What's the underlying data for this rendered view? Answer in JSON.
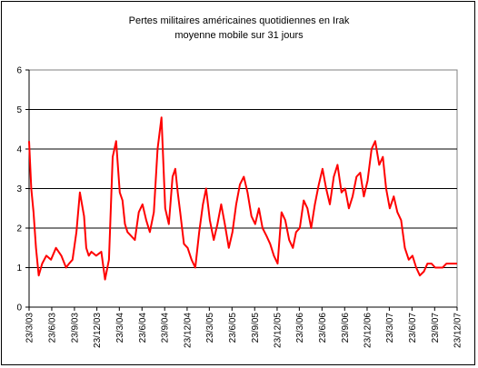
{
  "chart_data": {
    "type": "line",
    "title": "Pertes militaires américaines quotidiennes en Irak",
    "subtitle": "moyenne mobile sur 31 jours",
    "xlabel": "",
    "ylabel": "",
    "ylim": [
      0,
      6
    ],
    "yticks": [
      "0",
      "1",
      "2",
      "3",
      "4",
      "5",
      "6"
    ],
    "xlim": [
      "2003-03-23",
      "2007-12-23"
    ],
    "xticks": [
      "23/3/03",
      "23/6/03",
      "23/9/03",
      "23/12/03",
      "23/3/04",
      "23/6/04",
      "23/9/04",
      "23/12/04",
      "23/3/05",
      "23/6/05",
      "23/9/05",
      "23/12/05",
      "23/3/06",
      "23/6/06",
      "23/9/06",
      "23/12/06",
      "23/3/07",
      "23/6/07",
      "23/9/07",
      "23/12/07"
    ],
    "grid": true,
    "legend": "none",
    "line_color": "#ff0000",
    "x": [
      "2003-03-23",
      "2003-04-01",
      "2003-04-10",
      "2003-04-20",
      "2003-05-01",
      "2003-05-15",
      "2003-06-01",
      "2003-06-20",
      "2003-07-10",
      "2003-08-01",
      "2003-08-20",
      "2003-09-01",
      "2003-09-15",
      "2003-10-01",
      "2003-10-15",
      "2003-11-01",
      "2003-11-10",
      "2003-11-20",
      "2003-12-01",
      "2003-12-20",
      "2004-01-10",
      "2004-01-25",
      "2004-02-10",
      "2004-02-25",
      "2004-03-10",
      "2004-03-25",
      "2004-04-05",
      "2004-04-15",
      "2004-04-25",
      "2004-05-10",
      "2004-05-25",
      "2004-06-10",
      "2004-06-25",
      "2004-07-10",
      "2004-07-25",
      "2004-08-10",
      "2004-08-25",
      "2004-09-10",
      "2004-09-25",
      "2004-10-10",
      "2004-10-25",
      "2004-11-05",
      "2004-11-15",
      "2004-11-25",
      "2004-12-10",
      "2004-12-25",
      "2005-01-10",
      "2005-01-25",
      "2005-02-10",
      "2005-02-25",
      "2005-03-10",
      "2005-03-25",
      "2005-04-10",
      "2005-04-25",
      "2005-05-10",
      "2005-05-25",
      "2005-06-10",
      "2005-06-25",
      "2005-07-10",
      "2005-07-25",
      "2005-08-10",
      "2005-08-25",
      "2005-09-10",
      "2005-09-25",
      "2005-10-10",
      "2005-10-25",
      "2005-11-10",
      "2005-11-25",
      "2005-12-10",
      "2005-12-25",
      "2006-01-10",
      "2006-01-25",
      "2006-02-10",
      "2006-02-25",
      "2006-03-10",
      "2006-03-25",
      "2006-04-10",
      "2006-04-25",
      "2006-05-10",
      "2006-05-25",
      "2006-06-10",
      "2006-06-25",
      "2006-07-10",
      "2006-07-25",
      "2006-08-10",
      "2006-08-25",
      "2006-09-10",
      "2006-09-25",
      "2006-10-10",
      "2006-10-25",
      "2006-11-10",
      "2006-11-25",
      "2006-12-10",
      "2006-12-25",
      "2007-01-10",
      "2007-01-25",
      "2007-02-10",
      "2007-02-25",
      "2007-03-10",
      "2007-03-25",
      "2007-04-10",
      "2007-04-25",
      "2007-05-10",
      "2007-05-25",
      "2007-06-10",
      "2007-06-25",
      "2007-07-10",
      "2007-07-25",
      "2007-08-10",
      "2007-08-25",
      "2007-09-10",
      "2007-09-25",
      "2007-10-10",
      "2007-10-25",
      "2007-11-10",
      "2007-11-25",
      "2007-12-10",
      "2007-12-23"
    ],
    "series": [
      {
        "values": [
          4.2,
          3.0,
          2.4,
          1.5,
          0.8,
          1.1,
          1.3,
          1.2,
          1.5,
          1.3,
          1.0,
          1.1,
          1.2,
          1.9,
          2.9,
          2.3,
          1.5,
          1.3,
          1.4,
          1.3,
          1.4,
          0.7,
          1.2,
          3.8,
          4.2,
          2.9,
          2.7,
          2.1,
          1.9,
          1.8,
          1.7,
          2.4,
          2.6,
          2.2,
          1.9,
          2.4,
          4.0,
          4.8,
          2.5,
          2.1,
          3.3,
          3.5,
          2.9,
          2.4,
          1.6,
          1.5,
          1.2,
          1.0,
          1.9,
          2.6,
          3.0,
          2.2,
          1.7,
          2.1,
          2.6,
          2.1,
          1.5,
          1.9,
          2.6,
          3.1,
          3.3,
          2.9,
          2.3,
          2.1,
          2.5,
          2.0,
          1.8,
          1.6,
          1.3,
          1.1,
          2.4,
          2.2,
          1.7,
          1.5,
          1.9,
          2.0,
          2.7,
          2.5,
          2.0,
          2.6,
          3.1,
          3.5,
          3.0,
          2.6,
          3.3,
          3.6,
          2.9,
          3.0,
          2.5,
          2.8,
          3.3,
          3.4,
          2.8,
          3.2,
          4.0,
          4.2,
          3.6,
          3.8,
          3.0,
          2.5,
          2.8,
          2.4,
          2.2,
          1.5,
          1.2,
          1.3,
          1.0,
          0.8,
          0.9,
          1.1,
          1.1,
          1.0,
          1.0,
          1.0,
          1.1,
          1.1,
          1.1,
          1.1
        ]
      }
    ]
  }
}
